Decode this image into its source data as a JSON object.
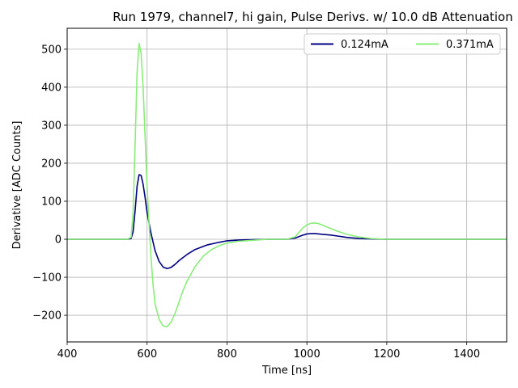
{
  "chart_data": {
    "type": "line",
    "title": "Run 1979, channel7, hi gain, Pulse Derivs. w/ 10.0 dB Attenuation",
    "xlabel": "Time [ns]",
    "ylabel": "Derivative [ADC Counts]",
    "xlim": [
      400,
      1500
    ],
    "ylim": [
      -270,
      555
    ],
    "xticks": [
      400,
      600,
      800,
      1000,
      1200,
      1400
    ],
    "yticks": [
      -200,
      -100,
      0,
      100,
      200,
      300,
      400,
      500
    ],
    "grid": true,
    "legend_position": "top-right",
    "series": [
      {
        "name": "0.124mA",
        "color": "#000080",
        "x": [
          400,
          500,
          550,
          560,
          565,
          570,
          575,
          580,
          585,
          590,
          595,
          600,
          610,
          620,
          630,
          640,
          650,
          660,
          670,
          680,
          700,
          720,
          750,
          780,
          800,
          830,
          860,
          900,
          950,
          970,
          980,
          990,
          1000,
          1010,
          1020,
          1040,
          1060,
          1080,
          1100,
          1130,
          1160,
          1200,
          1300,
          1400,
          1500
        ],
        "y": [
          0,
          0,
          0,
          2,
          20,
          75,
          140,
          170,
          168,
          145,
          110,
          70,
          15,
          -30,
          -58,
          -73,
          -77,
          -74,
          -66,
          -56,
          -40,
          -27,
          -15,
          -8,
          -4,
          -2,
          -1,
          0,
          0,
          3,
          7,
          11,
          14,
          15,
          15,
          13,
          11,
          8,
          5,
          2,
          1,
          0,
          0,
          0,
          0
        ]
      },
      {
        "name": "0.371mA",
        "color": "#88ee77",
        "x": [
          400,
          500,
          550,
          560,
          565,
          570,
          575,
          580,
          585,
          590,
          595,
          600,
          605,
          610,
          615,
          620,
          630,
          640,
          650,
          660,
          670,
          680,
          690,
          700,
          720,
          740,
          760,
          780,
          800,
          830,
          860,
          900,
          950,
          970,
          980,
          990,
          1000,
          1010,
          1020,
          1030,
          1040,
          1060,
          1080,
          1100,
          1130,
          1160,
          1200,
          1300,
          1400,
          1500
        ],
        "y": [
          0,
          0,
          0,
          5,
          70,
          250,
          440,
          515,
          490,
          400,
          270,
          140,
          40,
          -50,
          -120,
          -170,
          -210,
          -228,
          -230,
          -218,
          -195,
          -165,
          -135,
          -110,
          -72,
          -45,
          -28,
          -17,
          -10,
          -5,
          -3,
          0,
          0,
          6,
          18,
          30,
          38,
          42,
          43,
          41,
          37,
          28,
          20,
          13,
          6,
          2,
          0,
          0,
          0,
          0
        ]
      }
    ]
  }
}
